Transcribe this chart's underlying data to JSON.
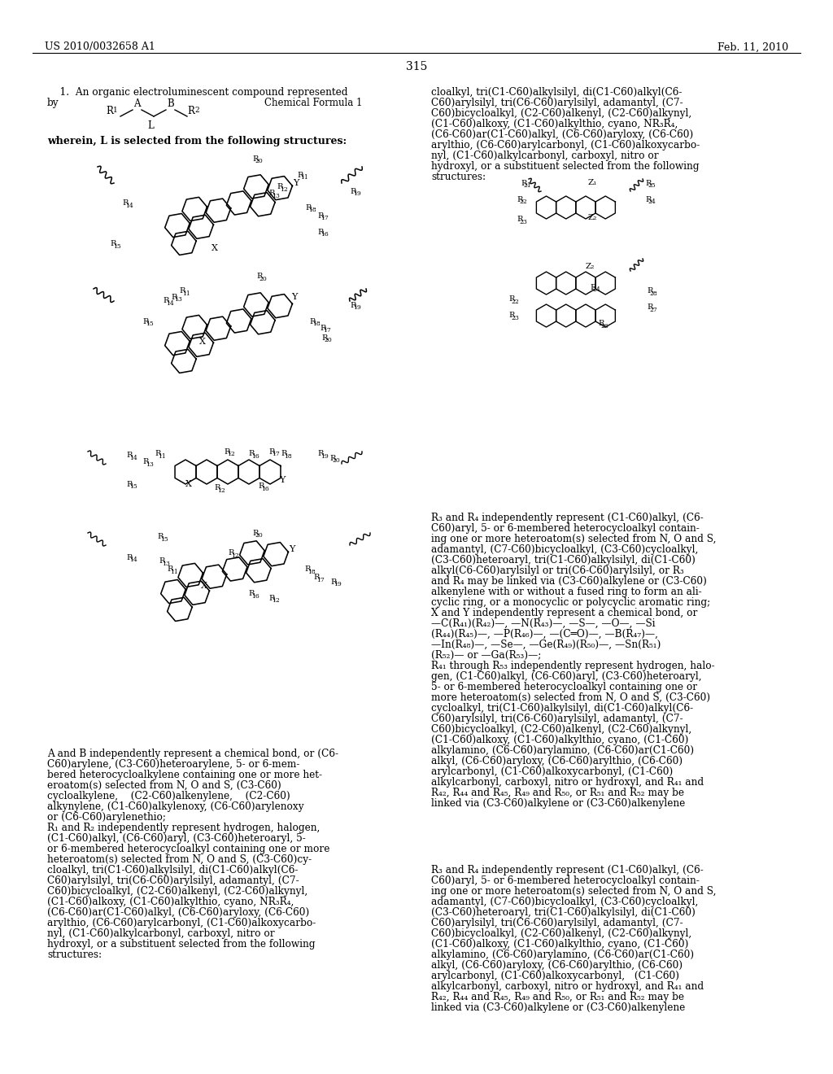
{
  "page_number": "315",
  "header_left": "US 2010/0032658 A1",
  "header_right": "Feb. 11, 2010",
  "background_color": "#ffffff",
  "text_color": "#000000",
  "font_family": "serif"
}
